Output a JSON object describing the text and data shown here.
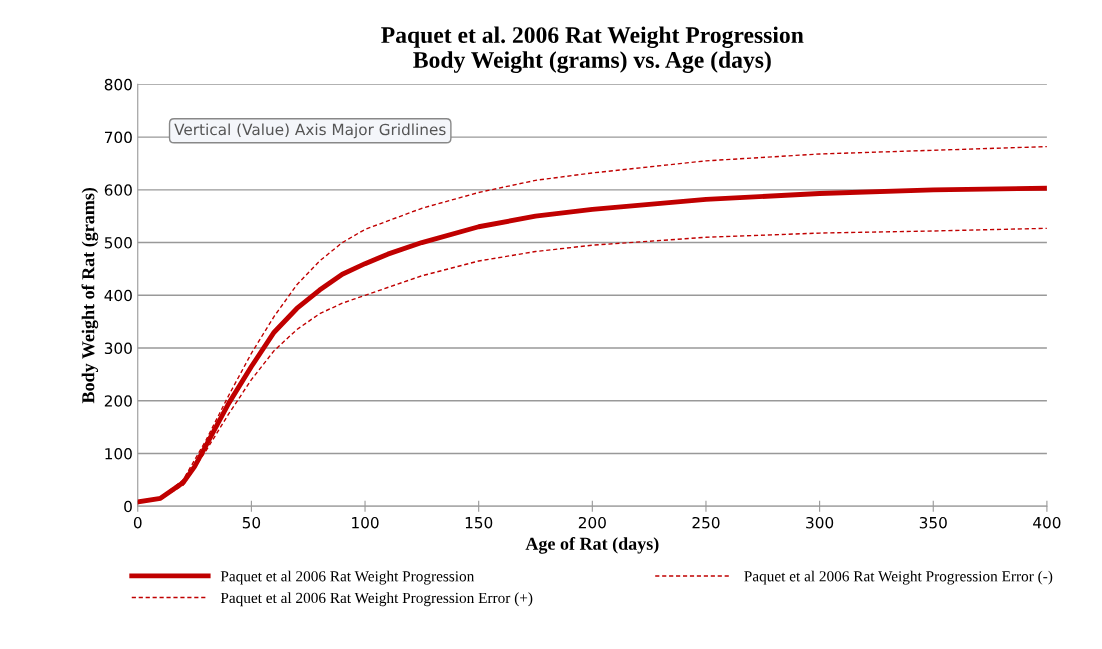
{
  "chart_data": {
    "type": "line",
    "title": "Paquet et al. 2006 Rat Weight Progression\nBody Weight (grams) vs. Age (days)",
    "xlabel": "Age of Rat (days)",
    "ylabel": "Body Weight of Rat (grams)",
    "annotations": [
      "Vertical (Value) Axis Major Gridlines"
    ],
    "xlim": [
      0,
      400
    ],
    "xticks": [
      0,
      50,
      100,
      150,
      200,
      250,
      300,
      350,
      400
    ],
    "ylim": [
      0,
      800
    ],
    "yticks": [
      0,
      100,
      200,
      300,
      400,
      500,
      600,
      700,
      800
    ],
    "grid": "y",
    "legend": "bottom",
    "series": [
      {
        "name": "Paquet et al 2006 Rat Weight Progression",
        "color": "#c00000",
        "line_style": "solid",
        "x": [
          0,
          10,
          20,
          25,
          30,
          40,
          50,
          60,
          70,
          80,
          90,
          100,
          110,
          125,
          150,
          175,
          200,
          250,
          300,
          350,
          400
        ],
        "values": [
          8,
          15,
          45,
          75,
          115,
          195,
          265,
          330,
          375,
          410,
          440,
          460,
          478,
          500,
          530,
          550,
          563,
          582,
          593,
          600,
          603
        ]
      },
      {
        "name": "Paquet et al 2006 Rat Weight Progression Error (+)",
        "color": "#c00000",
        "line_style": "dashed",
        "x": [
          0,
          10,
          20,
          30,
          40,
          50,
          60,
          70,
          80,
          90,
          100,
          125,
          150,
          175,
          200,
          250,
          300,
          350,
          400
        ],
        "values": [
          8,
          16,
          50,
          125,
          210,
          290,
          360,
          420,
          465,
          500,
          525,
          565,
          595,
          618,
          632,
          655,
          668,
          675,
          682
        ]
      },
      {
        "name": "Paquet et al 2006 Rat Weight Progression Error (-)",
        "color": "#c00000",
        "line_style": "dashed",
        "x": [
          0,
          10,
          20,
          30,
          40,
          50,
          60,
          70,
          80,
          90,
          100,
          125,
          150,
          175,
          200,
          250,
          300,
          350,
          400
        ],
        "values": [
          8,
          14,
          40,
          105,
          175,
          240,
          295,
          335,
          365,
          385,
          400,
          437,
          465,
          483,
          495,
          510,
          518,
          522,
          527
        ]
      }
    ]
  }
}
